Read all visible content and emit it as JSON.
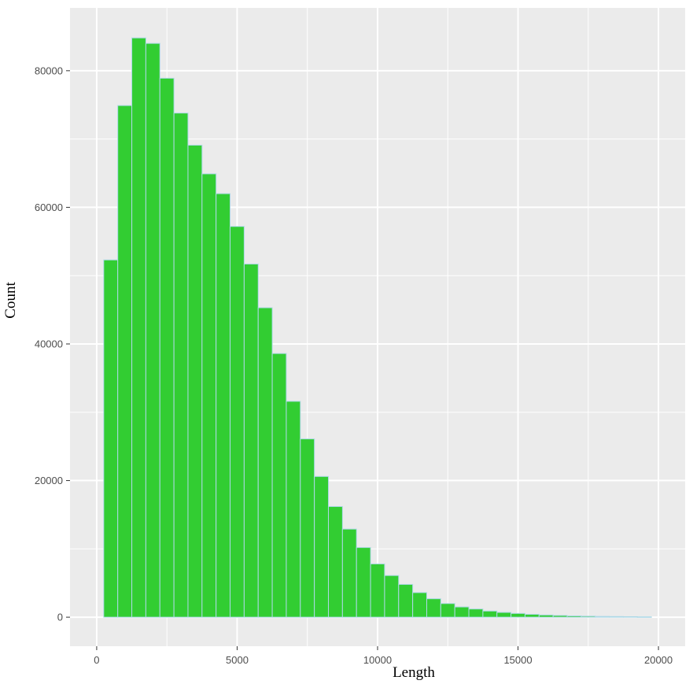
{
  "colors": {
    "panel_background": "#ebebeb",
    "grid_major": "#ffffff",
    "bar_fill": "#32cd32",
    "bar_outline": "#add8e6",
    "tick_text": "#4d4d4d",
    "axis_title_text": "#000000"
  },
  "chart_data": {
    "type": "bar",
    "title": "",
    "xlabel": "Length",
    "ylabel": "Count",
    "xlim": [
      -950,
      20950
    ],
    "ylim": [
      -4250,
      89200
    ],
    "x_ticks": [
      0,
      5000,
      10000,
      15000,
      20000
    ],
    "y_ticks": [
      0,
      20000,
      40000,
      60000,
      80000
    ],
    "grid": true,
    "bin_width": 500,
    "bin_centers": [
      500,
      1000,
      1500,
      2000,
      2500,
      3000,
      3500,
      4000,
      4500,
      5000,
      5500,
      6000,
      6500,
      7000,
      7500,
      8000,
      8500,
      9000,
      9500,
      10000,
      10500,
      11000,
      11500,
      12000,
      12500,
      13000,
      13500,
      14000,
      14500,
      15000,
      15500,
      16000,
      16500,
      17000,
      17500,
      18000,
      18500,
      19000,
      19500
    ],
    "values": [
      52300,
      74900,
      84800,
      84000,
      78900,
      73800,
      69100,
      64900,
      62000,
      57200,
      51700,
      45300,
      38600,
      31600,
      26100,
      20600,
      16200,
      12900,
      10200,
      7800,
      6100,
      4800,
      3600,
      2700,
      2000,
      1500,
      1200,
      900,
      700,
      550,
      420,
      320,
      250,
      190,
      150,
      110,
      90,
      70,
      50
    ]
  }
}
